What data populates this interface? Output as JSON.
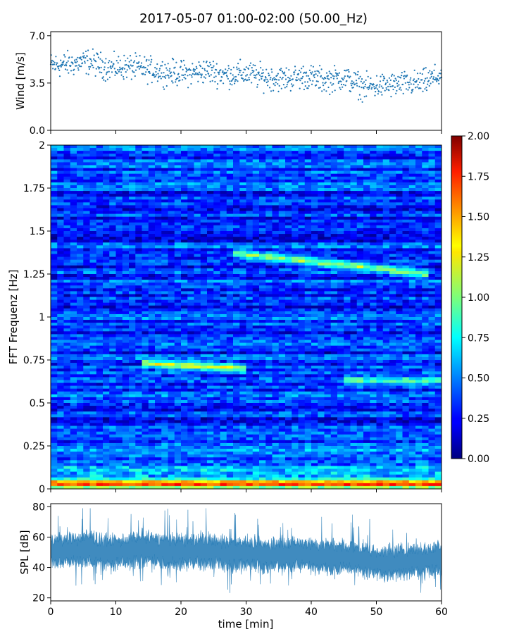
{
  "figure": {
    "title": "2017-05-07 01:00-02:00 (50.00_Hz)"
  },
  "chart_data": [
    {
      "type": "scatter",
      "name": "wind-panel",
      "ylabel": "Wind [m/s]",
      "xlabel": "",
      "xlim": [
        0,
        60
      ],
      "ylim": [
        0,
        7.3
      ],
      "yticks": [
        "0.0",
        "3.5",
        "7.0"
      ],
      "ytick_values": [
        0,
        3.5,
        7.0
      ],
      "xtick_values": [
        0,
        10,
        20,
        30,
        40,
        50,
        60
      ],
      "grid": false,
      "color": "#1f77b4",
      "x_min": [
        0,
        3,
        6,
        9,
        12,
        15,
        18,
        21,
        24,
        27,
        30,
        33,
        36,
        39,
        42,
        45,
        48,
        51,
        54,
        57,
        60
      ],
      "y_mean": [
        4.8,
        4.9,
        5.1,
        4.6,
        4.7,
        4.5,
        4.3,
        4.2,
        4.4,
        4.1,
        4.2,
        3.9,
        3.8,
        4.0,
        3.7,
        3.9,
        3.2,
        3.3,
        3.4,
        3.5,
        4.1
      ],
      "y_spread": 0.7
    },
    {
      "type": "heatmap",
      "name": "spectrogram",
      "ylabel": "FFT Frequenz [Hz]",
      "xlabel": "",
      "xlim": [
        0,
        60
      ],
      "ylim": [
        0,
        2
      ],
      "yticks": [
        "0",
        "0.25",
        "0.5",
        "0.75",
        "1",
        "1.25",
        "1.5",
        "1.75",
        "2"
      ],
      "ytick_values": [
        0,
        0.25,
        0.5,
        0.75,
        1,
        1.25,
        1.5,
        1.75,
        2
      ],
      "colormap": "jet",
      "colorbar": {
        "min": 0,
        "max": 2,
        "ticks": [
          "0.00",
          "0.25",
          "0.50",
          "0.75",
          "1.00",
          "1.25",
          "1.50",
          "1.75",
          "2.00"
        ],
        "tick_values": [
          0,
          0.25,
          0.5,
          0.75,
          1,
          1.25,
          1.5,
          1.75,
          2
        ]
      },
      "ridges": [
        {
          "f_start": 1.37,
          "f_end": 1.25,
          "t_start": 28,
          "t_end": 58,
          "level": 1.1
        },
        {
          "f_start": 0.73,
          "f_end": 0.7,
          "t_start": 14,
          "t_end": 30,
          "level": 1.2
        },
        {
          "f_start": 0.63,
          "f_end": 0.63,
          "t_start": 45,
          "t_end": 60,
          "level": 1.0
        },
        {
          "f_start": 0.03,
          "f_end": 0.03,
          "t_start": 0,
          "t_end": 60,
          "level": 1.8
        }
      ],
      "background_level": 0.35
    },
    {
      "type": "area",
      "name": "spl-panel",
      "ylabel": "SPL [dB]",
      "xlabel": "time [min]",
      "xlim": [
        0,
        60
      ],
      "ylim": [
        18,
        82
      ],
      "yticks": [
        "20",
        "40",
        "60",
        "80"
      ],
      "ytick_values": [
        20,
        40,
        60,
        80
      ],
      "xticks": [
        "0",
        "10",
        "20",
        "30",
        "40",
        "50",
        "60"
      ],
      "xtick_values": [
        0,
        10,
        20,
        30,
        40,
        50,
        60
      ],
      "color": "#1f77b4",
      "x_min": [
        0,
        3,
        6,
        9,
        12,
        15,
        18,
        21,
        24,
        27,
        30,
        33,
        36,
        39,
        42,
        45,
        48,
        51,
        54,
        57,
        60
      ],
      "y_mean": [
        50,
        51,
        52,
        50,
        51,
        52,
        50,
        50,
        51,
        49,
        49,
        48,
        48,
        49,
        47,
        47,
        45,
        43,
        44,
        44,
        46
      ],
      "y_halfwidth": 8
    }
  ]
}
